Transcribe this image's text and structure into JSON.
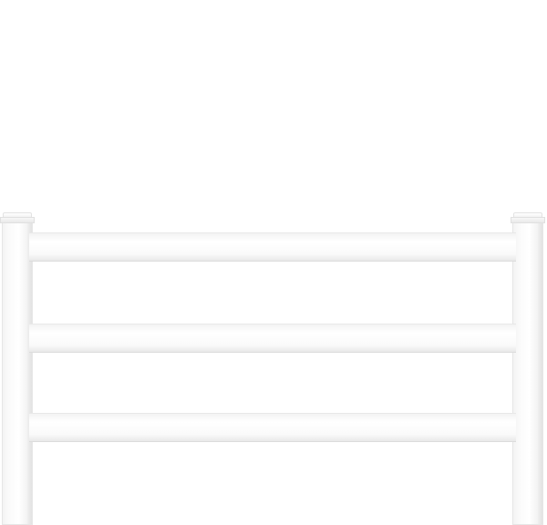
{
  "scene": {
    "subject": "fence-section",
    "colors": {
      "background": "#ffffff",
      "vinyl": "#f7f7f7",
      "shadow": "#e2e2e2"
    },
    "rail_count": 3,
    "post_count": 2
  }
}
